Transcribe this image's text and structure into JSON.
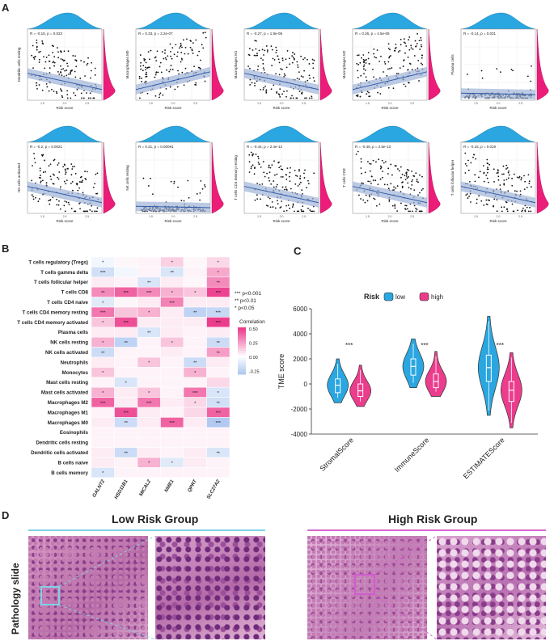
{
  "panels": {
    "a": "A",
    "b": "B",
    "c": "C",
    "d": "D"
  },
  "colors": {
    "blue": "#2aa6e0",
    "pink": "#ec1d79",
    "violin_low": "#2aa6e0",
    "violin_high": "#ec3c8c",
    "heat_pos": "#ec3c8c",
    "heat_neg": "#7fa7e8"
  },
  "scatter_panels": [
    {
      "ylabel": "Dendritic cells resting",
      "stat": "R = -0.15, p = 0.023",
      "xlabel": "Risk score",
      "slope": "neg"
    },
    {
      "ylabel": "Macrophages M0",
      "stat": "R = 0.33, p = 2.2e-07",
      "xlabel": "Risk score",
      "slope": "pos"
    },
    {
      "ylabel": "Macrophages M1",
      "stat": "R = -0.27, p = 1.9e-05",
      "xlabel": "Risk score",
      "slope": "neg"
    },
    {
      "ylabel": "Macrophages M2",
      "stat": "R = 0.26, p = 4.5e-05",
      "xlabel": "Risk score",
      "slope": "pos"
    },
    {
      "ylabel": "Plasma cells",
      "stat": "R = -0.14, p = 0.031",
      "xlabel": "Risk score",
      "slope": "flat"
    },
    {
      "ylabel": "NK cells activated",
      "stat": "R = -0.2, p = 0.0021",
      "xlabel": "Risk score",
      "slope": "neg"
    },
    {
      "ylabel": "NK cells resting",
      "stat": "R = 0.21, p = 0.00091",
      "xlabel": "Risk score",
      "slope": "flat"
    },
    {
      "ylabel": "T cells CD4 memory resting",
      "stat": "R = -0.44, p = 2.4e-12",
      "xlabel": "Risk score",
      "slope": "neg"
    },
    {
      "ylabel": "T cells CD8",
      "stat": "R = -0.45, p = 2.6e-13",
      "xlabel": "Risk score",
      "slope": "neg"
    },
    {
      "ylabel": "T cells follicular helper",
      "stat": "R = -0.15, p = 0.019",
      "xlabel": "Risk score",
      "slope": "neg"
    }
  ],
  "heatmap": {
    "rows": [
      "T cells regulatory (Tregs)",
      "T cells gamma delta",
      "T cells follicular helper",
      "T cells CD8",
      "T cells CD4 naive",
      "T cells CD4 memory resting",
      "T cells CD4 memory activated",
      "Plasma cells",
      "NK cells resting",
      "NK cells activated",
      "Neutrophils",
      "Monocytes",
      "Mast cells resting",
      "Mast cells activated",
      "Macrophages M2",
      "Macrophages M1",
      "Macrophages M0",
      "Eosinophils",
      "Dendritic cells resting",
      "Dendritic cells activated",
      "B cells naive",
      "B cells memory"
    ],
    "cols": [
      "GALNT2",
      "HSD11B1",
      "MICAL2",
      "NME1",
      "QPRT",
      "SLC27A2"
    ],
    "values": [
      [
        -0.05,
        0.02,
        0.03,
        0.12,
        0.02,
        0.1
      ],
      [
        -0.18,
        -0.05,
        0.03,
        -0.15,
        0.03,
        0.22
      ],
      [
        0.05,
        0.03,
        -0.15,
        0.05,
        0.02,
        0.3
      ],
      [
        0.3,
        0.4,
        0.3,
        0.2,
        0.15,
        0.48
      ],
      [
        -0.12,
        0.02,
        0.05,
        0.32,
        0.05,
        0.05
      ],
      [
        0.35,
        0.15,
        0.2,
        0.05,
        -0.25,
        -0.22
      ],
      [
        0.15,
        0.45,
        0.05,
        0.05,
        0.05,
        0.5
      ],
      [
        0.05,
        0.05,
        -0.15,
        0.05,
        0.03,
        0.05
      ],
      [
        0.2,
        -0.25,
        0.03,
        0.15,
        0.03,
        -0.2
      ],
      [
        -0.2,
        0.03,
        0.03,
        0.05,
        0.03,
        0.25
      ],
      [
        0.05,
        0.03,
        0.15,
        0.03,
        -0.2,
        0.05
      ],
      [
        0.15,
        0.03,
        0.03,
        0.03,
        0.2,
        0.03
      ],
      [
        0.03,
        -0.15,
        0.03,
        0.03,
        0.03,
        0.1
      ],
      [
        0.2,
        0.05,
        0.15,
        0.03,
        0.35,
        -0.15
      ],
      [
        0.4,
        0.05,
        0.35,
        0.05,
        0.1,
        -0.18
      ],
      [
        0.03,
        0.45,
        0.05,
        0.03,
        0.1,
        0.4
      ],
      [
        0.05,
        -0.2,
        0.05,
        0.4,
        0.05,
        -0.3
      ],
      [
        0.03,
        0.03,
        0.03,
        0.03,
        0.03,
        0.03
      ],
      [
        0.03,
        0.03,
        0.03,
        0.03,
        0.03,
        0.03
      ],
      [
        0.05,
        -0.2,
        0.05,
        0.03,
        0.05,
        -0.15
      ],
      [
        0.05,
        0.03,
        0.2,
        -0.12,
        0.05,
        0.03
      ],
      [
        -0.15,
        0.03,
        0.03,
        0.03,
        0.03,
        0.03
      ]
    ],
    "stars": [
      [
        "*",
        "",
        "",
        "*",
        "",
        "*"
      ],
      [
        "***",
        "",
        "",
        "**",
        "",
        "*"
      ],
      [
        "",
        "",
        "**",
        "",
        "",
        "**"
      ],
      [
        "**",
        "***",
        "***",
        "*",
        "*",
        "***"
      ],
      [
        "*",
        "",
        "",
        "***",
        "",
        ""
      ],
      [
        "***",
        "",
        "*",
        "",
        "**",
        "***"
      ],
      [
        "*",
        "***",
        "",
        "",
        "",
        "***"
      ],
      [
        "",
        "",
        "**",
        "",
        "",
        ""
      ],
      [
        "*",
        "**",
        "",
        "*",
        "",
        "**"
      ],
      [
        "**",
        "",
        "",
        "",
        "",
        "**"
      ],
      [
        "",
        "",
        "*",
        "",
        "**",
        ""
      ],
      [
        "*",
        "",
        "",
        "",
        "*",
        ""
      ],
      [
        "",
        "*",
        "",
        "",
        "",
        ""
      ],
      [
        "*",
        "",
        "*",
        "",
        "***",
        "*"
      ],
      [
        "***",
        "",
        "***",
        "",
        "*",
        "**"
      ],
      [
        "",
        "***",
        "",
        "",
        "",
        "***"
      ],
      [
        "",
        "**",
        "",
        "***",
        "",
        "***"
      ],
      [
        "",
        "",
        "",
        "",
        "",
        ""
      ],
      [
        "",
        "",
        "",
        "",
        "",
        ""
      ],
      [
        "",
        "**",
        "",
        "",
        "",
        "**"
      ],
      [
        "",
        "",
        "*",
        "*",
        "",
        ""
      ],
      [
        "*",
        "",
        "",
        "",
        "",
        ""
      ]
    ],
    "sig_legend": [
      "*** p<0.001",
      "** p<0.01",
      "* p<0.05"
    ],
    "colorbar_title": "Correlation",
    "colorbar_ticks": [
      "0.50",
      "0.25",
      "0.00",
      "-0.25"
    ]
  },
  "chart_data": {
    "type": "violin",
    "title": "",
    "legend_title": "Risk",
    "legend": [
      "low",
      "high"
    ],
    "ylabel": "TME score",
    "categories": [
      "StromalScore",
      "ImmuneScore",
      "ESTIMATEScore"
    ],
    "ylim": [
      -4000,
      6000
    ],
    "yticks": [
      6000,
      4000,
      2000,
      0,
      -2000,
      -4000
    ],
    "significance": [
      "***",
      "***",
      "***"
    ],
    "series": [
      {
        "name": "low",
        "median": [
          -100,
          1400,
          1300
        ],
        "q1": [
          -700,
          700,
          200
        ],
        "q3": [
          400,
          2000,
          2300
        ],
        "min": [
          -1500,
          -300,
          -2500
        ],
        "max": [
          2000,
          3600,
          5400
        ]
      },
      {
        "name": "high",
        "median": [
          -550,
          200,
          -500
        ],
        "q1": [
          -1000,
          -300,
          -1400
        ],
        "q3": [
          0,
          800,
          200
        ],
        "min": [
          -1800,
          -1000,
          -3500
        ],
        "max": [
          1500,
          2600,
          2500
        ]
      }
    ]
  },
  "pathology": {
    "side_label": "Pathology slide",
    "low_title": "Low Risk Group",
    "high_title": "High Risk Group"
  }
}
